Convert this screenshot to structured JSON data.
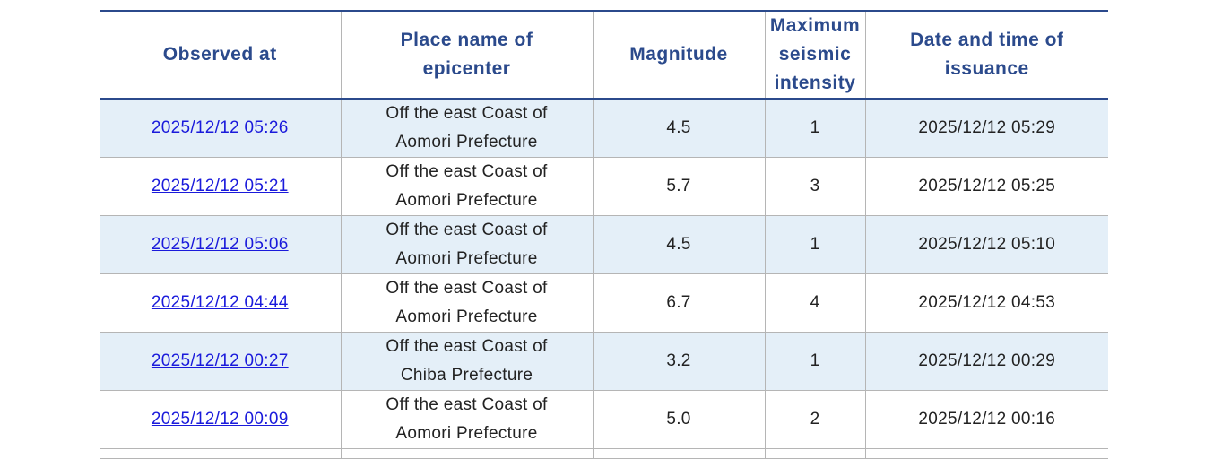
{
  "table": {
    "headers": [
      "Observed at",
      "Place name of epicenter",
      "Magnitude",
      "Maximum seismic intensity",
      "Date and time of issuance"
    ],
    "rows": [
      [
        "2025/12/12 05:26",
        "Off the east Coast of Aomori Prefecture",
        "4.5",
        "1",
        "2025/12/12 05:29"
      ],
      [
        "2025/12/12 05:21",
        "Off the east Coast of Aomori Prefecture",
        "5.7",
        "3",
        "2025/12/12 05:25"
      ],
      [
        "2025/12/12 05:06",
        "Off the east Coast of Aomori Prefecture",
        "4.5",
        "1",
        "2025/12/12 05:10"
      ],
      [
        "2025/12/12 04:44",
        "Off the east Coast of Aomori Prefecture",
        "6.7",
        "4",
        "2025/12/12 04:53"
      ],
      [
        "2025/12/12 00:27",
        "Off the east Coast of Chiba Prefecture",
        "3.2",
        "1",
        "2025/12/12 00:29"
      ],
      [
        "2025/12/12 00:09",
        "Off the east Coast of Aomori Prefecture",
        "5.0",
        "2",
        "2025/12/12 00:16"
      ]
    ]
  }
}
